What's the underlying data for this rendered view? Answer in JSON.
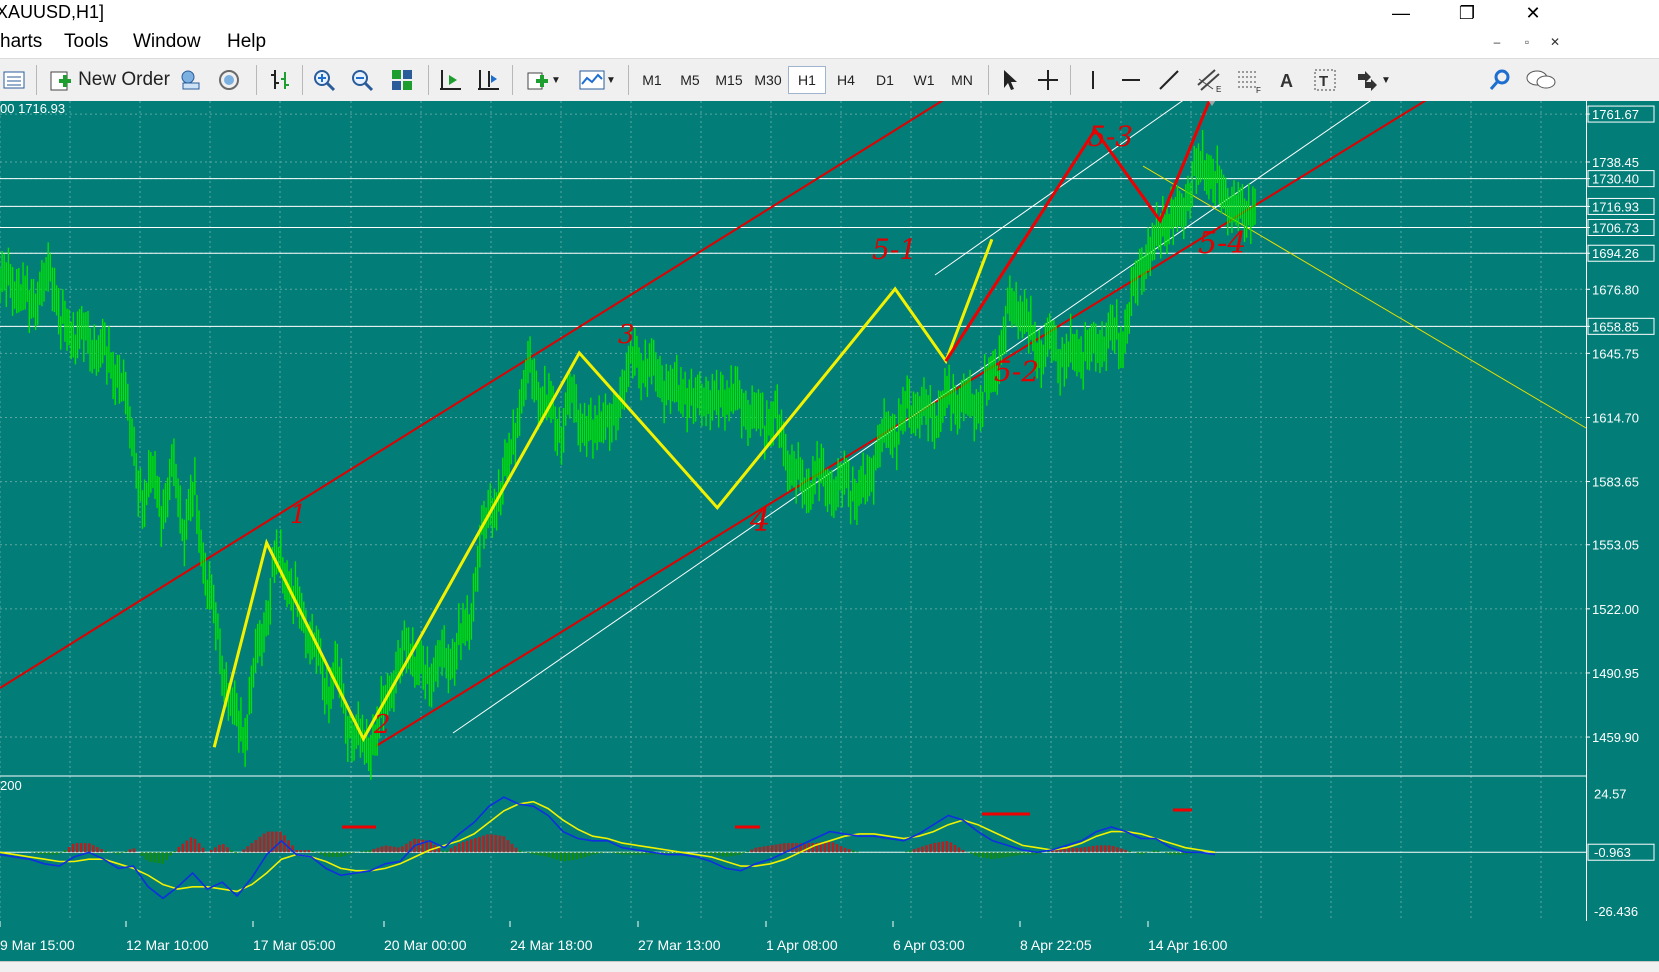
{
  "window": {
    "title": "XAUUSD,H1]",
    "minimize": "—",
    "restore": "❐",
    "close": "✕"
  },
  "menu": [
    "harts",
    "Tools",
    "Window",
    "Help"
  ],
  "mdi": [
    "–",
    "▫",
    "✕"
  ],
  "toolbar": {
    "new_order_label": "New Order",
    "timeframes": [
      "M1",
      "M5",
      "M15",
      "M30",
      "H1",
      "H4",
      "D1",
      "W1",
      "MN"
    ],
    "active_timeframe": "H1",
    "icons": [
      "profiles-icon",
      "new-order-icon",
      "market-watch-icon",
      "signal-icon",
      "bar-chart-icon",
      "zoom-in-icon",
      "zoom-out-icon",
      "tile-windows-icon",
      "auto-scroll-icon",
      "chart-shift-icon",
      "indicators-icon",
      "templates-icon",
      "cursor-icon",
      "crosshair-icon",
      "vertical-line-icon",
      "horizontal-line-icon",
      "trendline-icon",
      "channel-icon",
      "fibonacci-icon",
      "text-icon",
      "text-label-icon",
      "arrows-icon",
      "search-icon",
      "chat-icon"
    ]
  },
  "chart_data": {
    "type": "line",
    "symbol": "XAUUSD",
    "timeframe": "H1",
    "info_text": "00 1716.93",
    "ylim": [
      1442,
      1768
    ],
    "price_ticks": [
      "1761.67",
      "1738.45",
      "1730.40",
      "1716.93",
      "1706.73",
      "1694.26",
      "1676.80",
      "1658.85",
      "1645.75",
      "1614.70",
      "1583.65",
      "1553.05",
      "1522.00",
      "1490.95",
      "1459.90"
    ],
    "boxed_levels": [
      "1761.67",
      "1730.40",
      "1716.93",
      "1706.73",
      "1694.26",
      "1658.85"
    ],
    "horizontal_levels": [
      1730.4,
      1716.93,
      1706.73,
      1694.26,
      1658.85
    ],
    "time_labels": [
      "9 Mar 15:00",
      "12 Mar 10:00",
      "17 Mar 05:00",
      "20 Mar 00:00",
      "24 Mar 18:00",
      "27 Mar 13:00",
      "1 Apr 08:00",
      "6 Apr 03:00",
      "8 Apr 22:05",
      "14 Apr 16:00"
    ],
    "series": [
      {
        "values": [
          1680,
          1681,
          1676,
          1669,
          1678,
          1684,
          1664,
          1650,
          1662,
          1643,
          1654,
          1633,
          1638,
          1599,
          1574,
          1587,
          1569,
          1591,
          1560,
          1579,
          1544,
          1519,
          1488,
          1470,
          1461,
          1496,
          1515,
          1547,
          1539,
          1526,
          1514,
          1502,
          1481,
          1494,
          1466,
          1460,
          1455,
          1463,
          1481,
          1493,
          1505,
          1495,
          1486,
          1500,
          1493,
          1510,
          1511,
          1555,
          1568,
          1579,
          1596,
          1622,
          1640,
          1623,
          1620,
          1606,
          1627,
          1612,
          1605,
          1617,
          1608,
          1631,
          1644,
          1640,
          1638,
          1632,
          1627,
          1629,
          1620,
          1627,
          1620,
          1626,
          1625,
          1619,
          1616,
          1612,
          1616,
          1598,
          1587,
          1579,
          1588,
          1584,
          1578,
          1586,
          1575,
          1584,
          1598,
          1610,
          1607,
          1622,
          1618,
          1617,
          1615,
          1626,
          1622,
          1622,
          1620,
          1632,
          1645,
          1669,
          1668,
          1655,
          1645,
          1652,
          1643,
          1645,
          1647,
          1647,
          1651,
          1656,
          1651,
          1673,
          1691,
          1696,
          1711,
          1709,
          1717,
          1730,
          1740,
          1728,
          1724,
          1714,
          1715,
          1717
        ]
      }
    ],
    "wave_lines": [
      {
        "color": "yellow",
        "points": [
          [
            0.135,
            1455
          ],
          [
            0.168,
            1554
          ],
          [
            0.229,
            1459
          ],
          [
            0.365,
            1646
          ],
          [
            0.452,
            1571
          ],
          [
            0.564,
            1677
          ],
          [
            0.596,
            1642
          ],
          [
            0.625,
            1701
          ]
        ]
      },
      {
        "color": "red",
        "points": [
          [
            0.596,
            1642
          ],
          [
            0.69,
            1754
          ],
          [
            0.731,
            1710
          ],
          [
            0.762,
            1768
          ]
        ]
      }
    ],
    "wave_labels": [
      "1",
      "2",
      "3",
      "4",
      "5-1",
      "5-2",
      "5-3",
      "5-4"
    ],
    "oscillator": {
      "top_label": "200",
      "ticks": [
        "24.57",
        "-0.963",
        "-26.436"
      ],
      "current_value": "-0.963",
      "ylim": [
        -30,
        30
      ],
      "main": [
        -2,
        -3,
        -4,
        -6,
        -7,
        -3,
        -1,
        -4,
        -8,
        -7,
        -16,
        -21,
        -16,
        -10,
        -17,
        -14,
        -20,
        -12,
        -2,
        4,
        -2,
        -3,
        -8,
        -11,
        -10,
        -9,
        -6,
        -5,
        2,
        4,
        1,
        7,
        12,
        19,
        23,
        20,
        19,
        15,
        8,
        5,
        4,
        4,
        1,
        0,
        -1,
        -2,
        -2,
        -3,
        -5,
        -8,
        -9,
        -6,
        -4,
        -1,
        2,
        5,
        8,
        7,
        6,
        6,
        5,
        4,
        7,
        11,
        15,
        13,
        8,
        4,
        2,
        0,
        -1,
        0,
        2,
        4,
        8,
        10,
        8,
        5,
        5,
        1,
        -1,
        -1,
        -2
      ],
      "signal": [
        -1,
        -2,
        -3,
        -4,
        -5,
        -5,
        -4,
        -4,
        -6,
        -8,
        -11,
        -15,
        -17,
        -16,
        -16,
        -17,
        -18,
        -15,
        -10,
        -4,
        -2,
        -3,
        -5,
        -8,
        -9,
        -9,
        -8,
        -6,
        -3,
        0,
        2,
        4,
        7,
        12,
        17,
        20,
        21,
        18,
        13,
        9,
        6,
        5,
        3,
        2,
        1,
        0,
        -1,
        -2,
        -3,
        -5,
        -7,
        -7,
        -6,
        -4,
        -1,
        2,
        4,
        6,
        7,
        7,
        6,
        5,
        6,
        8,
        11,
        13,
        11,
        8,
        5,
        2,
        1,
        0,
        1,
        3,
        6,
        8,
        8,
        7,
        5,
        3,
        1,
        0,
        -1
      ],
      "histogram": [
        -1,
        -1,
        -1,
        -2,
        -2,
        3,
        3,
        0,
        -2,
        1,
        -5,
        -6,
        1,
        6,
        -1,
        3,
        -2,
        3,
        8,
        8,
        0,
        0,
        -3,
        -3,
        -1,
        0,
        2,
        1,
        5,
        4,
        -1,
        3,
        5,
        7,
        6,
        0,
        -2,
        -3,
        -5,
        -4,
        -2,
        -1,
        -2,
        -2,
        -2,
        -2,
        -1,
        -1,
        -2,
        -3,
        -2,
        1,
        2,
        3,
        3,
        3,
        4,
        1,
        -1,
        -1,
        -1,
        -1,
        1,
        3,
        4,
        0,
        -3,
        -4,
        -3,
        -2,
        -2,
        0,
        1,
        1,
        2,
        2,
        0,
        -2,
        0,
        -2,
        -2,
        -1,
        -1
      ]
    }
  }
}
